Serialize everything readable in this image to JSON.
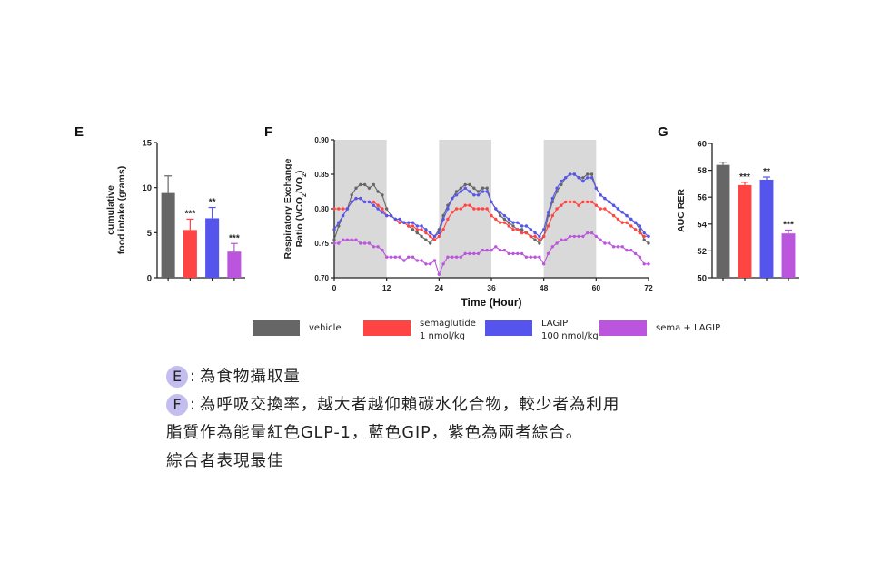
{
  "panels": {
    "e": {
      "label": "E"
    },
    "f": {
      "label": "F"
    },
    "g": {
      "label": "G"
    }
  },
  "colors": {
    "vehicle": "#666666",
    "semaglutide": "#ff4444",
    "lagip": "#5555ee",
    "combo": "#bb55dd",
    "dark_phase": "#d9d9d9"
  },
  "legend": {
    "items": [
      {
        "key": "vehicle",
        "label": "vehicle"
      },
      {
        "key": "semaglutide",
        "label": "semaglutide\n1 nmol/kg"
      },
      {
        "key": "lagip",
        "label": "LAGIP\n100 nmol/kg"
      },
      {
        "key": "combo",
        "label": "sema + LAGIP"
      }
    ]
  },
  "chart_data": [
    {
      "id": "e",
      "type": "bar",
      "ylabel": "cumulative food intake (grams)",
      "ylim": [
        0,
        15
      ],
      "yticks": [
        0,
        5,
        10,
        15
      ],
      "categories": [
        "vehicle",
        "semaglutide 1 nmol/kg",
        "LAGIP 100 nmol/kg",
        "sema + LAGIP"
      ],
      "values": [
        9.4,
        5.3,
        6.6,
        2.9
      ],
      "errors": [
        1.9,
        1.2,
        1.2,
        0.9
      ],
      "significance": [
        "",
        "***",
        "**",
        "***"
      ]
    },
    {
      "id": "f",
      "type": "line",
      "xlabel": "Time (Hour)",
      "ylabel": "Respiratory Exchange Ratio (VCO2/VO2)",
      "ylabel_line1": "Respiratory Exchange",
      "ylabel_line2": "Ratio (VCO",
      "xlim": [
        0,
        72
      ],
      "ylim": [
        0.7,
        0.9
      ],
      "xticks": [
        0,
        12,
        24,
        36,
        48,
        60,
        72
      ],
      "yticks": [
        "0.70",
        "0.75",
        "0.80",
        "0.85",
        "0.90"
      ],
      "dark_periods": [
        [
          0,
          12
        ],
        [
          24,
          36
        ],
        [
          48,
          60
        ]
      ],
      "series": [
        {
          "key": "vehicle",
          "values": [
            0.755,
            0.775,
            0.79,
            0.8,
            0.82,
            0.83,
            0.835,
            0.835,
            0.83,
            0.835,
            0.825,
            0.82,
            0.8,
            0.79,
            0.785,
            0.78,
            0.78,
            0.775,
            0.77,
            0.765,
            0.76,
            0.755,
            0.75,
            0.76,
            0.77,
            0.79,
            0.805,
            0.815,
            0.825,
            0.83,
            0.835,
            0.835,
            0.83,
            0.825,
            0.83,
            0.83,
            0.81,
            0.8,
            0.79,
            0.785,
            0.78,
            0.775,
            0.77,
            0.77,
            0.765,
            0.76,
            0.755,
            0.75,
            0.76,
            0.79,
            0.81,
            0.825,
            0.835,
            0.845,
            0.85,
            0.85,
            0.845,
            0.845,
            0.85,
            0.85,
            0.83,
            0.82,
            0.815,
            0.81,
            0.805,
            0.8,
            0.795,
            0.79,
            0.785,
            0.78,
            0.77,
            0.755,
            0.75
          ]
        },
        {
          "key": "semaglutide",
          "values": [
            0.8,
            0.8,
            0.8,
            0.8,
            0.81,
            0.815,
            0.815,
            0.81,
            0.81,
            0.81,
            0.805,
            0.8,
            0.79,
            0.79,
            0.785,
            0.78,
            0.78,
            0.775,
            0.775,
            0.77,
            0.77,
            0.765,
            0.76,
            0.755,
            0.76,
            0.77,
            0.785,
            0.795,
            0.8,
            0.8,
            0.805,
            0.805,
            0.8,
            0.8,
            0.8,
            0.8,
            0.79,
            0.785,
            0.78,
            0.78,
            0.775,
            0.77,
            0.77,
            0.765,
            0.765,
            0.76,
            0.76,
            0.755,
            0.76,
            0.775,
            0.79,
            0.8,
            0.805,
            0.81,
            0.81,
            0.81,
            0.805,
            0.81,
            0.81,
            0.81,
            0.805,
            0.8,
            0.8,
            0.795,
            0.79,
            0.785,
            0.78,
            0.78,
            0.775,
            0.77,
            0.765,
            0.76,
            0.76
          ]
        },
        {
          "key": "lagip",
          "values": [
            0.77,
            0.78,
            0.79,
            0.8,
            0.81,
            0.815,
            0.815,
            0.81,
            0.81,
            0.805,
            0.8,
            0.795,
            0.79,
            0.79,
            0.785,
            0.785,
            0.78,
            0.78,
            0.78,
            0.775,
            0.775,
            0.77,
            0.765,
            0.76,
            0.765,
            0.785,
            0.8,
            0.815,
            0.82,
            0.825,
            0.83,
            0.825,
            0.82,
            0.82,
            0.825,
            0.825,
            0.81,
            0.8,
            0.795,
            0.79,
            0.785,
            0.78,
            0.78,
            0.775,
            0.775,
            0.77,
            0.765,
            0.76,
            0.77,
            0.795,
            0.815,
            0.83,
            0.84,
            0.845,
            0.85,
            0.85,
            0.845,
            0.84,
            0.845,
            0.845,
            0.83,
            0.82,
            0.815,
            0.81,
            0.805,
            0.8,
            0.795,
            0.79,
            0.785,
            0.78,
            0.775,
            0.765,
            0.76
          ]
        },
        {
          "key": "combo",
          "values": [
            0.75,
            0.75,
            0.755,
            0.755,
            0.755,
            0.755,
            0.75,
            0.75,
            0.75,
            0.745,
            0.745,
            0.74,
            0.73,
            0.73,
            0.73,
            0.73,
            0.725,
            0.73,
            0.73,
            0.725,
            0.725,
            0.72,
            0.72,
            0.725,
            0.705,
            0.72,
            0.73,
            0.73,
            0.73,
            0.73,
            0.735,
            0.735,
            0.735,
            0.735,
            0.74,
            0.74,
            0.74,
            0.745,
            0.74,
            0.74,
            0.735,
            0.735,
            0.735,
            0.735,
            0.73,
            0.73,
            0.73,
            0.73,
            0.72,
            0.735,
            0.745,
            0.75,
            0.755,
            0.755,
            0.76,
            0.76,
            0.76,
            0.76,
            0.765,
            0.765,
            0.76,
            0.755,
            0.75,
            0.75,
            0.745,
            0.745,
            0.745,
            0.74,
            0.74,
            0.735,
            0.73,
            0.72,
            0.72
          ]
        }
      ]
    },
    {
      "id": "g",
      "type": "bar",
      "ylabel": "AUC RER",
      "ylim": [
        50,
        60
      ],
      "yticks": [
        50,
        52,
        54,
        56,
        58,
        60
      ],
      "categories": [
        "vehicle",
        "semaglutide 1 nmol/kg",
        "LAGIP 100 nmol/kg",
        "sema + LAGIP"
      ],
      "values": [
        58.4,
        56.9,
        57.3,
        53.3
      ],
      "errors": [
        0.2,
        0.2,
        0.2,
        0.25
      ],
      "significance": [
        "",
        "***",
        "**",
        "***"
      ]
    }
  ],
  "notes": {
    "e": {
      "badge": "E",
      "text": "為食物攝取量"
    },
    "f": {
      "badge": "F",
      "line1": "為呼吸交換率，越大者越仰賴碳水化合物，較少者為利用",
      "line2": "脂質作為能量紅色GLP-1，藍色GIP，紫色為兩者綜合。"
    },
    "summary": "綜合者表現最佳"
  }
}
